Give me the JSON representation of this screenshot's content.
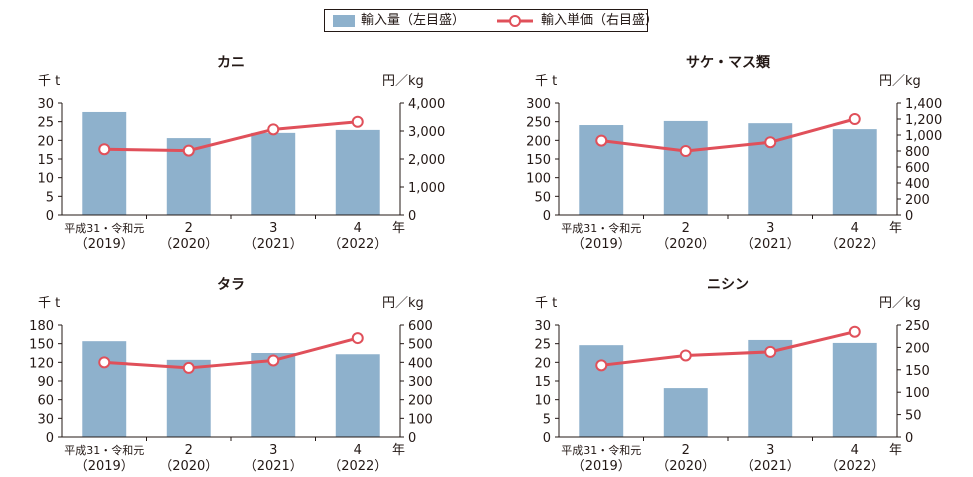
{
  "legend": {
    "bar_label": "輸入量（左目盛）",
    "line_label": "輸入単価（右目盛）"
  },
  "colors": {
    "bar": "#8eb1cc",
    "line": "#e0505a",
    "axis": "#231815"
  },
  "chart_data": [
    {
      "type": "bar",
      "title": "カニ",
      "ylabel": "千 t",
      "y2label": "円／kg",
      "xunit": "年",
      "categories": [
        [
          "平成31・令和元",
          "（2019）"
        ],
        [
          "2",
          "（2020）"
        ],
        [
          "3",
          "（2021）"
        ],
        [
          "4",
          "（2022）"
        ]
      ],
      "series": [
        {
          "name": "輸入量（左目盛）",
          "values": [
            27.6,
            20.6,
            22.0,
            22.8
          ]
        },
        {
          "name": "輸入単価（右目盛）",
          "values": [
            2350,
            2300,
            3060,
            3330
          ]
        }
      ],
      "ylim": [
        0,
        30
      ],
      "yticks": [
        0,
        5,
        10,
        15,
        20,
        25,
        30
      ],
      "y2lim": [
        0,
        4000
      ],
      "y2ticks": [
        0,
        1000,
        2000,
        3000,
        4000
      ],
      "y2tick_labels": [
        "0",
        "1,000",
        "2,000",
        "3,000",
        "4,000"
      ]
    },
    {
      "type": "bar",
      "title": "サケ・マス類",
      "ylabel": "千 t",
      "y2label": "円／kg",
      "xunit": "年",
      "categories": [
        [
          "平成31・令和元",
          "（2019）"
        ],
        [
          "2",
          "（2020）"
        ],
        [
          "3",
          "（2021）"
        ],
        [
          "4",
          "（2022）"
        ]
      ],
      "series": [
        {
          "name": "輸入量（左目盛）",
          "values": [
            241,
            252,
            246,
            230
          ]
        },
        {
          "name": "輸入単価（右目盛）",
          "values": [
            930,
            800,
            910,
            1200
          ]
        }
      ],
      "ylim": [
        0,
        300
      ],
      "yticks": [
        0,
        50,
        100,
        150,
        200,
        250,
        300
      ],
      "y2lim": [
        0,
        1400
      ],
      "y2ticks": [
        0,
        200,
        400,
        600,
        800,
        1000,
        1200,
        1400
      ],
      "y2tick_labels": [
        "0",
        "200",
        "400",
        "600",
        "800",
        "1,000",
        "1,200",
        "1,400"
      ]
    },
    {
      "type": "bar",
      "title": "タラ",
      "ylabel": "千 t",
      "y2label": "円／kg",
      "xunit": "年",
      "categories": [
        [
          "平成31・令和元",
          "（2019）"
        ],
        [
          "2",
          "（2020）"
        ],
        [
          "3",
          "（2021）"
        ],
        [
          "4",
          "（2022）"
        ]
      ],
      "series": [
        {
          "name": "輸入量（左目盛）",
          "values": [
            154,
            124,
            135,
            133
          ]
        },
        {
          "name": "輸入単価（右目盛）",
          "values": [
            400,
            370,
            410,
            530
          ]
        }
      ],
      "ylim": [
        0,
        180
      ],
      "yticks": [
        0,
        30,
        60,
        90,
        120,
        150,
        180
      ],
      "y2lim": [
        0,
        600
      ],
      "y2ticks": [
        0,
        100,
        200,
        300,
        400,
        500,
        600
      ],
      "y2tick_labels": [
        "0",
        "100",
        "200",
        "300",
        "400",
        "500",
        "600"
      ]
    },
    {
      "type": "bar",
      "title": "ニシン",
      "ylabel": "千 t",
      "y2label": "円／kg",
      "xunit": "年",
      "categories": [
        [
          "平成31・令和元",
          "（2019）"
        ],
        [
          "2",
          "（2020）"
        ],
        [
          "3",
          "（2021）"
        ],
        [
          "4",
          "（2022）"
        ]
      ],
      "series": [
        {
          "name": "輸入量（左目盛）",
          "values": [
            24.6,
            13.1,
            26.0,
            25.2
          ]
        },
        {
          "name": "輸入単価（右目盛）",
          "values": [
            160,
            182,
            190,
            235
          ]
        }
      ],
      "ylim": [
        0,
        30
      ],
      "yticks": [
        0,
        5,
        10,
        15,
        20,
        25,
        30
      ],
      "y2lim": [
        0,
        250
      ],
      "y2ticks": [
        0,
        50,
        100,
        150,
        200,
        250
      ],
      "y2tick_labels": [
        "0",
        "50",
        "100",
        "150",
        "200",
        "250"
      ]
    }
  ]
}
